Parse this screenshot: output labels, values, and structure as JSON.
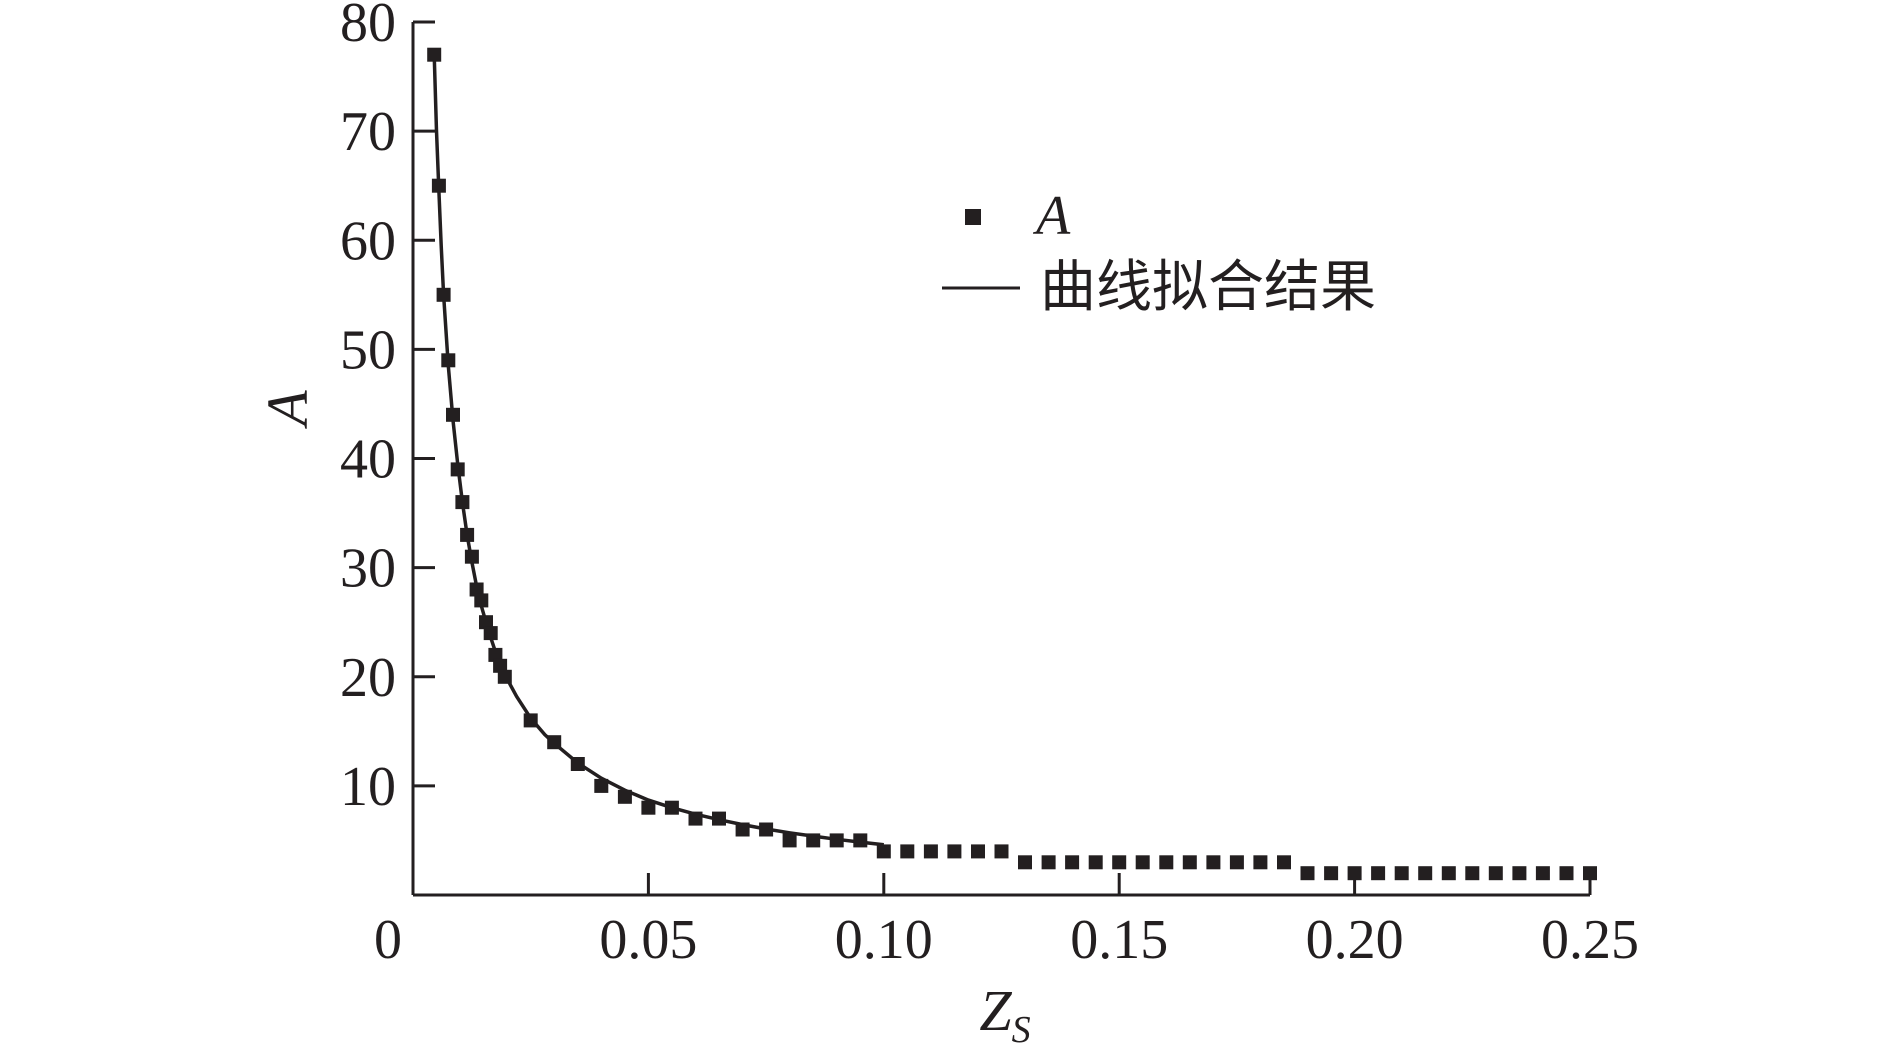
{
  "chart_data": {
    "type": "scatter",
    "xlabel": "Z",
    "xlabel_sub": "S",
    "ylabel": "A",
    "xlim": [
      0,
      0.25
    ],
    "ylim": [
      0,
      80
    ],
    "x_ticks": [
      {
        "value": 0,
        "label": "0"
      },
      {
        "value": 0.05,
        "label": "0.05"
      },
      {
        "value": 0.1,
        "label": "0.10"
      },
      {
        "value": 0.15,
        "label": "0.15"
      },
      {
        "value": 0.2,
        "label": "0.20"
      },
      {
        "value": 0.25,
        "label": "0.25"
      }
    ],
    "y_ticks": [
      {
        "value": 10,
        "label": "10"
      },
      {
        "value": 20,
        "label": "20"
      },
      {
        "value": 30,
        "label": "30"
      },
      {
        "value": 40,
        "label": "40"
      },
      {
        "value": 50,
        "label": "50"
      },
      {
        "value": 60,
        "label": "60"
      },
      {
        "value": 70,
        "label": "70"
      },
      {
        "value": 80,
        "label": "80"
      }
    ],
    "grid": false,
    "legend_position": "upper-right",
    "series": [
      {
        "name": "A",
        "kind": "markers",
        "marker": "square",
        "color": "#231f20",
        "points": [
          [
            0.0045,
            77
          ],
          [
            0.0055,
            65
          ],
          [
            0.0065,
            55
          ],
          [
            0.0075,
            49
          ],
          [
            0.0085,
            44
          ],
          [
            0.0095,
            39
          ],
          [
            0.0105,
            36
          ],
          [
            0.0115,
            33
          ],
          [
            0.0125,
            31
          ],
          [
            0.0135,
            28
          ],
          [
            0.0145,
            27
          ],
          [
            0.0155,
            25
          ],
          [
            0.0165,
            24
          ],
          [
            0.0175,
            22
          ],
          [
            0.0185,
            21
          ],
          [
            0.0195,
            20
          ],
          [
            0.025,
            16
          ],
          [
            0.03,
            14
          ],
          [
            0.035,
            12
          ],
          [
            0.04,
            10
          ],
          [
            0.045,
            9
          ],
          [
            0.05,
            8
          ],
          [
            0.055,
            8
          ],
          [
            0.06,
            7
          ],
          [
            0.065,
            7
          ],
          [
            0.07,
            6
          ],
          [
            0.075,
            6
          ],
          [
            0.08,
            5
          ],
          [
            0.085,
            5
          ],
          [
            0.09,
            5
          ],
          [
            0.095,
            5
          ],
          [
            0.1,
            4
          ],
          [
            0.105,
            4
          ],
          [
            0.11,
            4
          ],
          [
            0.115,
            4
          ],
          [
            0.12,
            4
          ],
          [
            0.125,
            4
          ],
          [
            0.13,
            3
          ],
          [
            0.135,
            3
          ],
          [
            0.14,
            3
          ],
          [
            0.145,
            3
          ],
          [
            0.15,
            3
          ],
          [
            0.155,
            3
          ],
          [
            0.16,
            3
          ],
          [
            0.165,
            3
          ],
          [
            0.17,
            3
          ],
          [
            0.175,
            3
          ],
          [
            0.18,
            3
          ],
          [
            0.185,
            3
          ],
          [
            0.19,
            2
          ],
          [
            0.195,
            2
          ],
          [
            0.2,
            2
          ],
          [
            0.205,
            2
          ],
          [
            0.21,
            2
          ],
          [
            0.215,
            2
          ],
          [
            0.22,
            2
          ],
          [
            0.225,
            2
          ],
          [
            0.23,
            2
          ],
          [
            0.235,
            2
          ],
          [
            0.24,
            2
          ],
          [
            0.245,
            2
          ],
          [
            0.25,
            2
          ]
        ]
      },
      {
        "name": "曲线拟合结果",
        "kind": "line",
        "color": "#231f20",
        "points": [
          [
            0.0045,
            77
          ],
          [
            0.005,
            70
          ],
          [
            0.0055,
            64.5
          ],
          [
            0.006,
            59.5
          ],
          [
            0.0065,
            55
          ],
          [
            0.0075,
            48.5
          ],
          [
            0.0085,
            43.5
          ],
          [
            0.0095,
            39.5
          ],
          [
            0.0105,
            36
          ],
          [
            0.0115,
            33
          ],
          [
            0.0125,
            30.5
          ],
          [
            0.0135,
            28.3
          ],
          [
            0.0145,
            26.5
          ],
          [
            0.0155,
            25
          ],
          [
            0.0165,
            23.6
          ],
          [
            0.0175,
            22.3
          ],
          [
            0.0185,
            21.2
          ],
          [
            0.0195,
            20.2
          ],
          [
            0.022,
            18.2
          ],
          [
            0.025,
            16.2
          ],
          [
            0.028,
            14.7
          ],
          [
            0.03,
            13.9
          ],
          [
            0.035,
            12.1
          ],
          [
            0.04,
            10.7
          ],
          [
            0.045,
            9.6
          ],
          [
            0.05,
            8.7
          ],
          [
            0.055,
            8.0
          ],
          [
            0.06,
            7.4
          ],
          [
            0.065,
            6.9
          ],
          [
            0.07,
            6.45
          ],
          [
            0.075,
            6.05
          ],
          [
            0.08,
            5.7
          ],
          [
            0.085,
            5.4
          ],
          [
            0.09,
            5.1
          ],
          [
            0.095,
            4.85
          ],
          [
            0.1,
            4.6
          ]
        ]
      }
    ]
  }
}
